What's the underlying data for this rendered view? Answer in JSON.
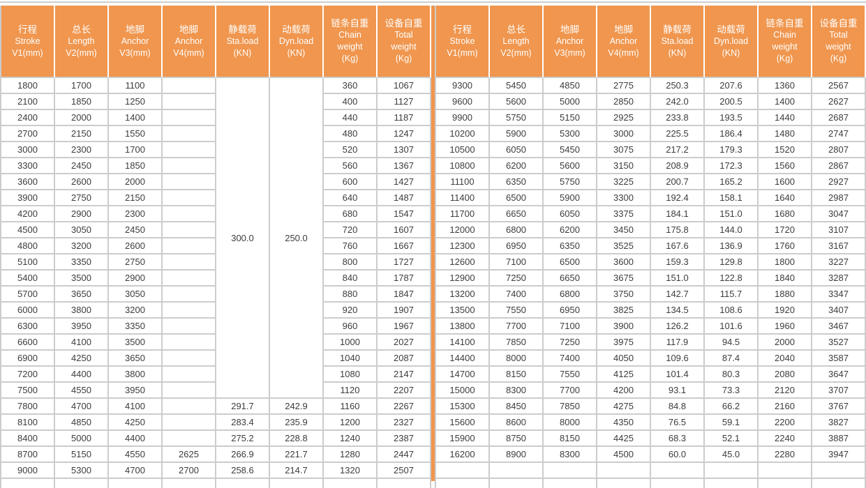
{
  "colors": {
    "header_orange": "#f0964e",
    "divider_orange": "#f0964e",
    "grid_gray": "#cccccc",
    "header_text": "#ffffff",
    "body_text": "#3c3c3c"
  },
  "table": {
    "header_columns": [
      {
        "lines": [
          "行程",
          "Stroke",
          "V1(mm)"
        ]
      },
      {
        "lines": [
          "总长",
          "Length",
          "V2(mm)"
        ]
      },
      {
        "lines": [
          "地脚",
          "Anchor",
          "V3(mm)"
        ]
      },
      {
        "lines": [
          "地脚",
          "Anchor",
          "V4(mm)"
        ]
      },
      {
        "lines": [
          "静载荷",
          "Sta.load",
          "(KN)"
        ]
      },
      {
        "lines": [
          "动载荷",
          "Dyn.load",
          "(KN)"
        ]
      },
      {
        "lines": [
          "链条自重",
          "Chain",
          "weight",
          "(Kg)"
        ]
      },
      {
        "lines": [
          "设备自重",
          "Total",
          "weight",
          "(Kg)"
        ]
      }
    ],
    "groups": [
      {
        "name": "left",
        "merged_cells": [
          {
            "col": 4,
            "start_row": 0,
            "row_span": 20,
            "value": "300.0"
          },
          {
            "col": 5,
            "start_row": 0,
            "row_span": 20,
            "value": "250.0"
          }
        ],
        "rows": [
          [
            "1800",
            "1700",
            "1100",
            "",
            "",
            "",
            "360",
            "1067"
          ],
          [
            "2100",
            "1850",
            "1250",
            "",
            "",
            "",
            "400",
            "1127"
          ],
          [
            "2400",
            "2000",
            "1400",
            "",
            "",
            "",
            "440",
            "1187"
          ],
          [
            "2700",
            "2150",
            "1550",
            "",
            "",
            "",
            "480",
            "1247"
          ],
          [
            "3000",
            "2300",
            "1700",
            "",
            "",
            "",
            "520",
            "1307"
          ],
          [
            "3300",
            "2450",
            "1850",
            "",
            "",
            "",
            "560",
            "1367"
          ],
          [
            "3600",
            "2600",
            "2000",
            "",
            "",
            "",
            "600",
            "1427"
          ],
          [
            "3900",
            "2750",
            "2150",
            "",
            "",
            "",
            "640",
            "1487"
          ],
          [
            "4200",
            "2900",
            "2300",
            "",
            "",
            "",
            "680",
            "1547"
          ],
          [
            "4500",
            "3050",
            "2450",
            "",
            "",
            "",
            "720",
            "1607"
          ],
          [
            "4800",
            "3200",
            "2600",
            "",
            "",
            "",
            "760",
            "1667"
          ],
          [
            "5100",
            "3350",
            "2750",
            "",
            "",
            "",
            "800",
            "1727"
          ],
          [
            "5400",
            "3500",
            "2900",
            "",
            "",
            "",
            "840",
            "1787"
          ],
          [
            "5700",
            "3650",
            "3050",
            "",
            "",
            "",
            "880",
            "1847"
          ],
          [
            "6000",
            "3800",
            "3200",
            "",
            "",
            "",
            "920",
            "1907"
          ],
          [
            "6300",
            "3950",
            "3350",
            "",
            "",
            "",
            "960",
            "1967"
          ],
          [
            "6600",
            "4100",
            "3500",
            "",
            "",
            "",
            "1000",
            "2027"
          ],
          [
            "6900",
            "4250",
            "3650",
            "",
            "",
            "",
            "1040",
            "2087"
          ],
          [
            "7200",
            "4400",
            "3800",
            "",
            "",
            "",
            "1080",
            "2147"
          ],
          [
            "7500",
            "4550",
            "3950",
            "",
            "",
            "",
            "1120",
            "2207"
          ],
          [
            "7800",
            "4700",
            "4100",
            "",
            "291.7",
            "242.9",
            "1160",
            "2267"
          ],
          [
            "8100",
            "4850",
            "4250",
            "",
            "283.4",
            "235.9",
            "1200",
            "2327"
          ],
          [
            "8400",
            "5000",
            "4400",
            "",
            "275.2",
            "228.8",
            "1240",
            "2387"
          ],
          [
            "8700",
            "5150",
            "4550",
            "2625",
            "266.9",
            "221.7",
            "1280",
            "2447"
          ],
          [
            "9000",
            "5300",
            "4700",
            "2700",
            "258.6",
            "214.7",
            "1320",
            "2507"
          ]
        ]
      },
      {
        "name": "right",
        "merged_cells": [],
        "rows": [
          [
            "9300",
            "5450",
            "4850",
            "2775",
            "250.3",
            "207.6",
            "1360",
            "2567"
          ],
          [
            "9600",
            "5600",
            "5000",
            "2850",
            "242.0",
            "200.5",
            "1400",
            "2627"
          ],
          [
            "9900",
            "5750",
            "5150",
            "2925",
            "233.8",
            "193.5",
            "1440",
            "2687"
          ],
          [
            "10200",
            "5900",
            "5300",
            "3000",
            "225.5",
            "186.4",
            "1480",
            "2747"
          ],
          [
            "10500",
            "6050",
            "5450",
            "3075",
            "217.2",
            "179.3",
            "1520",
            "2807"
          ],
          [
            "10800",
            "6200",
            "5600",
            "3150",
            "208.9",
            "172.3",
            "1560",
            "2867"
          ],
          [
            "11100",
            "6350",
            "5750",
            "3225",
            "200.7",
            "165.2",
            "1600",
            "2927"
          ],
          [
            "11400",
            "6500",
            "5900",
            "3300",
            "192.4",
            "158.1",
            "1640",
            "2987"
          ],
          [
            "11700",
            "6650",
            "6050",
            "3375",
            "184.1",
            "151.0",
            "1680",
            "3047"
          ],
          [
            "12000",
            "6800",
            "6200",
            "3450",
            "175.8",
            "144.0",
            "1720",
            "3107"
          ],
          [
            "12300",
            "6950",
            "6350",
            "3525",
            "167.6",
            "136.9",
            "1760",
            "3167"
          ],
          [
            "12600",
            "7100",
            "6500",
            "3600",
            "159.3",
            "129.8",
            "1800",
            "3227"
          ],
          [
            "12900",
            "7250",
            "6650",
            "3675",
            "151.0",
            "122.8",
            "1840",
            "3287"
          ],
          [
            "13200",
            "7400",
            "6800",
            "3750",
            "142.7",
            "115.7",
            "1880",
            "3347"
          ],
          [
            "13500",
            "7550",
            "6950",
            "3825",
            "134.5",
            "108.6",
            "1920",
            "3407"
          ],
          [
            "13800",
            "7700",
            "7100",
            "3900",
            "126.2",
            "101.6",
            "1960",
            "3467"
          ],
          [
            "14100",
            "7850",
            "7250",
            "3975",
            "117.9",
            "94.5",
            "2000",
            "3527"
          ],
          [
            "14400",
            "8000",
            "7400",
            "4050",
            "109.6",
            "87.4",
            "2040",
            "3587"
          ],
          [
            "14700",
            "8150",
            "7550",
            "4125",
            "101.4",
            "80.3",
            "2080",
            "3647"
          ],
          [
            "15000",
            "8300",
            "7700",
            "4200",
            "93.1",
            "73.3",
            "2120",
            "3707"
          ],
          [
            "15300",
            "8450",
            "7850",
            "4275",
            "84.8",
            "66.2",
            "2160",
            "3767"
          ],
          [
            "15600",
            "8600",
            "8000",
            "4350",
            "76.5",
            "59.1",
            "2200",
            "3827"
          ],
          [
            "15900",
            "8750",
            "8150",
            "4425",
            "68.3",
            "52.1",
            "2240",
            "3887"
          ],
          [
            "16200",
            "8900",
            "8300",
            "4500",
            "60.0",
            "45.0",
            "2280",
            "3947"
          ],
          [
            "",
            "",
            "",
            "",
            "",
            "",
            "",
            ""
          ]
        ]
      }
    ]
  }
}
